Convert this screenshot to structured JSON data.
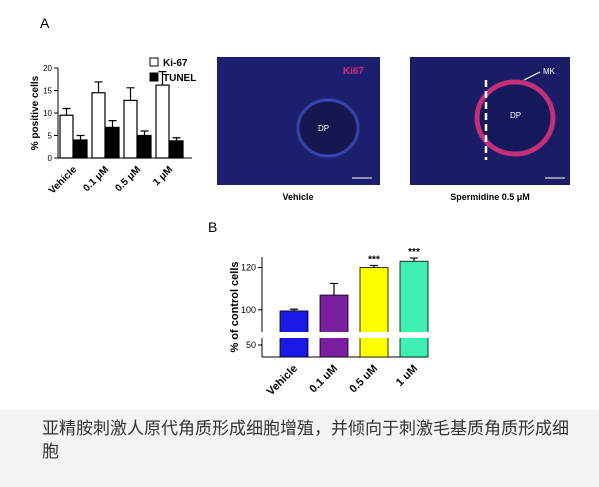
{
  "panels": [
    "A",
    "B"
  ],
  "images": [
    {
      "stain": "Ki67",
      "region": "DP",
      "caption": "Vehicle"
    },
    {
      "marker": "MK",
      "region": "DP",
      "caption": "Spermidine 0.5 μM"
    }
  ],
  "caption": "亚精胺刺激人原代角质形成细胞增殖，并倾向于刺激毛基质角质形成细胞",
  "chart_data": [
    {
      "type": "bar",
      "ylabel": "% positive cells",
      "categories": [
        "Vehicle",
        "0.1 μM",
        "0.5 μM",
        "1 μM"
      ],
      "series": [
        {
          "name": "Ki-67",
          "color": "#ffffff",
          "values": [
            9.5,
            14.5,
            12.8,
            16.2
          ],
          "errors": [
            1.5,
            2.4,
            2.8,
            3.0
          ]
        },
        {
          "name": "TUNEL",
          "color": "#000000",
          "values": [
            4.0,
            6.8,
            5.0,
            3.8
          ],
          "errors": [
            1.0,
            1.5,
            1.0,
            0.7
          ]
        }
      ],
      "ylim": [
        0,
        20
      ],
      "yticks": [
        0,
        5,
        10,
        15,
        20
      ]
    },
    {
      "type": "bar",
      "ylabel": "% of control cells",
      "categories": [
        "Vehicle",
        "0.1 uM",
        "0.5 uM",
        "1 uM"
      ],
      "values": [
        99.5,
        107,
        120,
        123
      ],
      "errors": [
        0.8,
        5.5,
        1.0,
        1.5
      ],
      "colors": [
        "#1a1ae6",
        "#7a1fa0",
        "#ffff00",
        "#3ff0b0"
      ],
      "annotations": [
        null,
        null,
        "***",
        "***"
      ],
      "ylim": [
        40,
        125
      ],
      "axis_break": [
        55,
        90
      ],
      "yticks": [
        50,
        100,
        120
      ]
    }
  ]
}
